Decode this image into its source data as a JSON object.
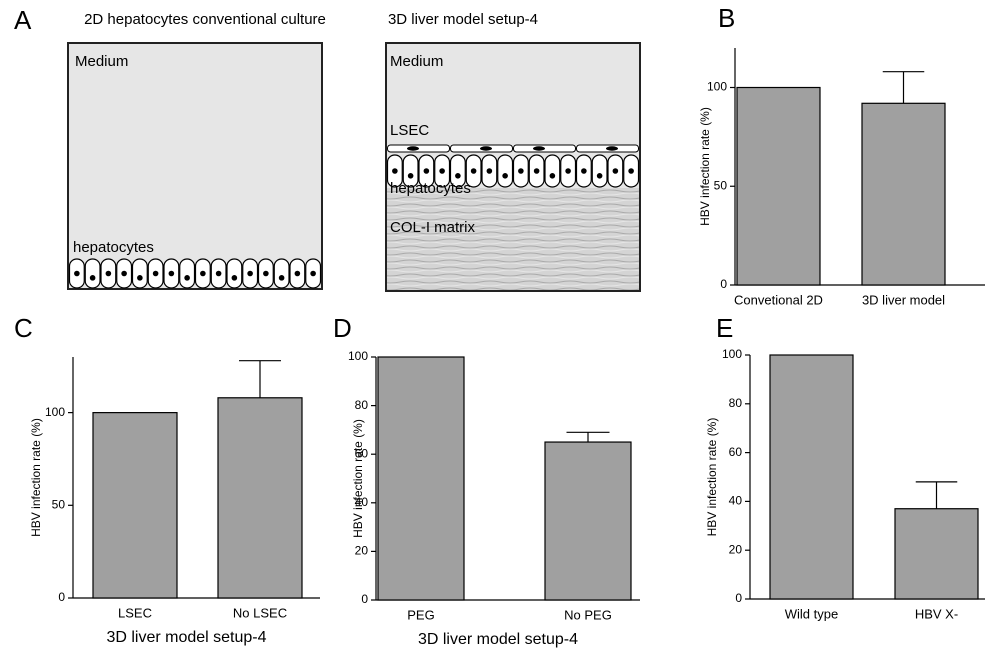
{
  "panel_a": {
    "letter": "A",
    "left": {
      "title": "2D hepatocytes conventional culture",
      "medium": "Medium",
      "cells": "hepatocytes"
    },
    "right": {
      "title": "3D liver model setup-4",
      "medium": "Medium",
      "lsec": "LSEC",
      "cells": "hepatocytes",
      "matrix": "COL-I matrix"
    }
  },
  "chart_data": [
    {
      "type": "bar",
      "panel": "B",
      "ylabel": "HBV infection rate (%)",
      "categories": [
        "Convetional 2D",
        "3D liver model"
      ],
      "values": [
        100,
        92
      ],
      "errors": [
        null,
        16
      ],
      "color": "#a0a0a0",
      "ylim": [
        0,
        120
      ],
      "yticks": [
        0,
        50,
        100
      ]
    },
    {
      "type": "bar",
      "panel": "C",
      "ylabel": "HBV infection rate (%)",
      "xlabel": "3D liver model setup-4",
      "categories": [
        "LSEC",
        "No LSEC"
      ],
      "values": [
        100,
        108
      ],
      "errors": [
        null,
        20
      ],
      "color": "#a0a0a0",
      "ylim": [
        0,
        130
      ],
      "yticks": [
        0,
        50,
        100
      ]
    },
    {
      "type": "bar",
      "panel": "D",
      "ylabel": "HBV infection rate (%)",
      "xlabel": "3D liver model setup-4",
      "categories": [
        "PEG",
        "No PEG"
      ],
      "values": [
        100,
        65
      ],
      "errors": [
        null,
        4
      ],
      "color": "#a0a0a0",
      "ylim": [
        0,
        100
      ],
      "yticks": [
        0,
        20,
        40,
        60,
        80,
        100
      ]
    },
    {
      "type": "bar",
      "panel": "E",
      "ylabel": "HBV infection rate (%)",
      "categories": [
        "Wild type",
        "HBV X-"
      ],
      "values": [
        100,
        37
      ],
      "errors": [
        null,
        11
      ],
      "color": "#a0a0a0",
      "ylim": [
        0,
        100
      ],
      "yticks": [
        0,
        20,
        40,
        60,
        80,
        100
      ]
    }
  ]
}
